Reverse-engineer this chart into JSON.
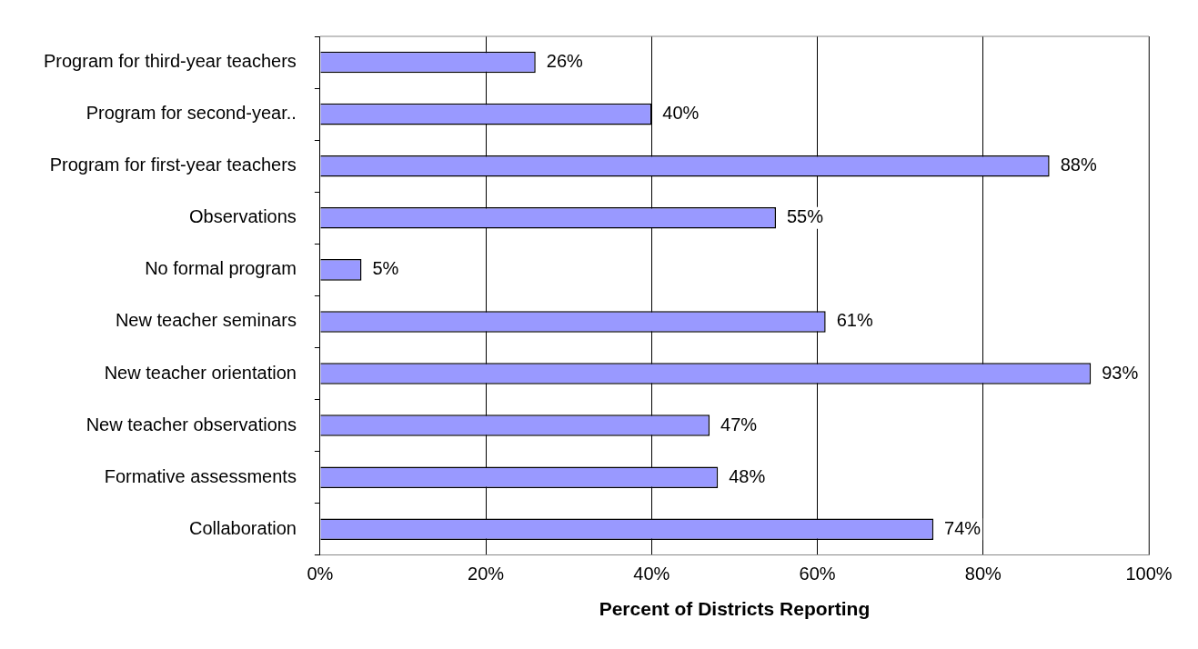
{
  "chart_data": {
    "type": "bar",
    "orientation": "horizontal",
    "xlabel": "Percent of Districts Reporting",
    "categories": [
      "Program for third-year teachers",
      "Program for second-year..",
      "Program for first-year teachers",
      "Observations",
      "No formal program",
      "New teacher seminars",
      "New teacher orientation",
      "New teacher observations",
      "Formative assessments",
      "Collaboration"
    ],
    "values": [
      26,
      40,
      88,
      55,
      5,
      61,
      93,
      47,
      48,
      74
    ],
    "value_labels": [
      "26%",
      "40%",
      "88%",
      "55%",
      "5%",
      "61%",
      "93%",
      "47%",
      "48%",
      "74%"
    ],
    "color": "#9999ff",
    "xlim": [
      0,
      100
    ],
    "xticks": [
      {
        "value": 0,
        "label": "0%"
      },
      {
        "value": 20,
        "label": "20%"
      },
      {
        "value": 40,
        "label": "40%"
      },
      {
        "value": 60,
        "label": "60%"
      },
      {
        "value": 80,
        "label": "80%"
      },
      {
        "value": 100,
        "label": "100%"
      }
    ],
    "grid": "x",
    "legend": false
  }
}
